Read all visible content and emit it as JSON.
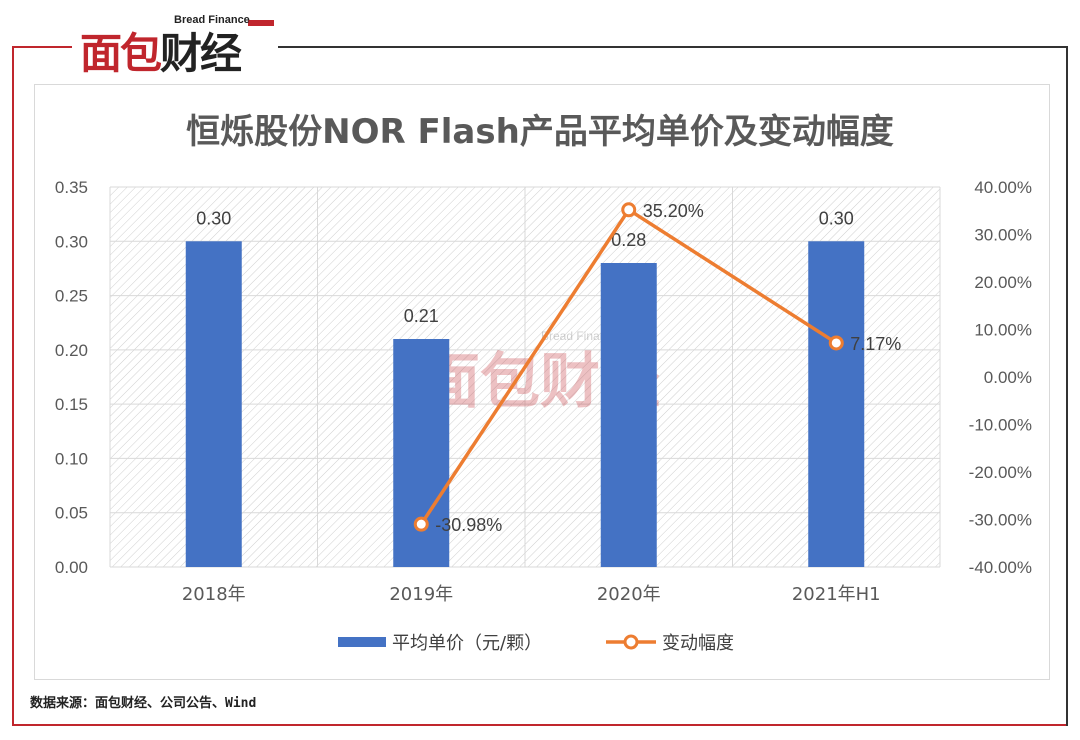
{
  "brand": {
    "logo_text_main": "面包",
    "logo_text_accent": "财经",
    "logo_subtitle": "Bread Finance"
  },
  "watermark": {
    "main": "面包财经",
    "subtitle": "Bread Finance"
  },
  "source_note": "数据来源：面包财经、公司公告、Wind",
  "colors": {
    "bar": "#4472c4",
    "line": "#ed7d31",
    "brand_red": "#c0262d",
    "text": "#595959"
  },
  "chart_data": {
    "type": "bar",
    "title": "恒烁股份NOR Flash产品平均单价及变动幅度",
    "categories": [
      "2018年",
      "2019年",
      "2020年",
      "2021年H1"
    ],
    "series": [
      {
        "name": "平均单价（元/颗）",
        "type": "bar",
        "axis": "left",
        "values": [
          0.3,
          0.21,
          0.28,
          0.3
        ],
        "labels": [
          "0.30",
          "0.21",
          "0.28",
          "0.30"
        ]
      },
      {
        "name": "变动幅度",
        "type": "line",
        "axis": "right",
        "points": [
          {
            "category": "2019年",
            "value": -30.98,
            "label": "-30.98%"
          },
          {
            "category": "2020年",
            "value": 35.2,
            "label": "35.20%"
          },
          {
            "category": "2021年H1",
            "value": 7.17,
            "label": "7.17%"
          }
        ]
      }
    ],
    "y_left": {
      "range": [
        0,
        0.35
      ],
      "ticks": [
        "0.00",
        "0.05",
        "0.10",
        "0.15",
        "0.20",
        "0.25",
        "0.30",
        "0.35"
      ]
    },
    "y_right": {
      "range": [
        -40,
        40
      ],
      "ticks": [
        "-40.00%",
        "-30.00%",
        "-20.00%",
        "-10.00%",
        "0.00%",
        "10.00%",
        "20.00%",
        "30.00%",
        "40.00%"
      ]
    },
    "grid": true,
    "legend_position": "bottom"
  }
}
